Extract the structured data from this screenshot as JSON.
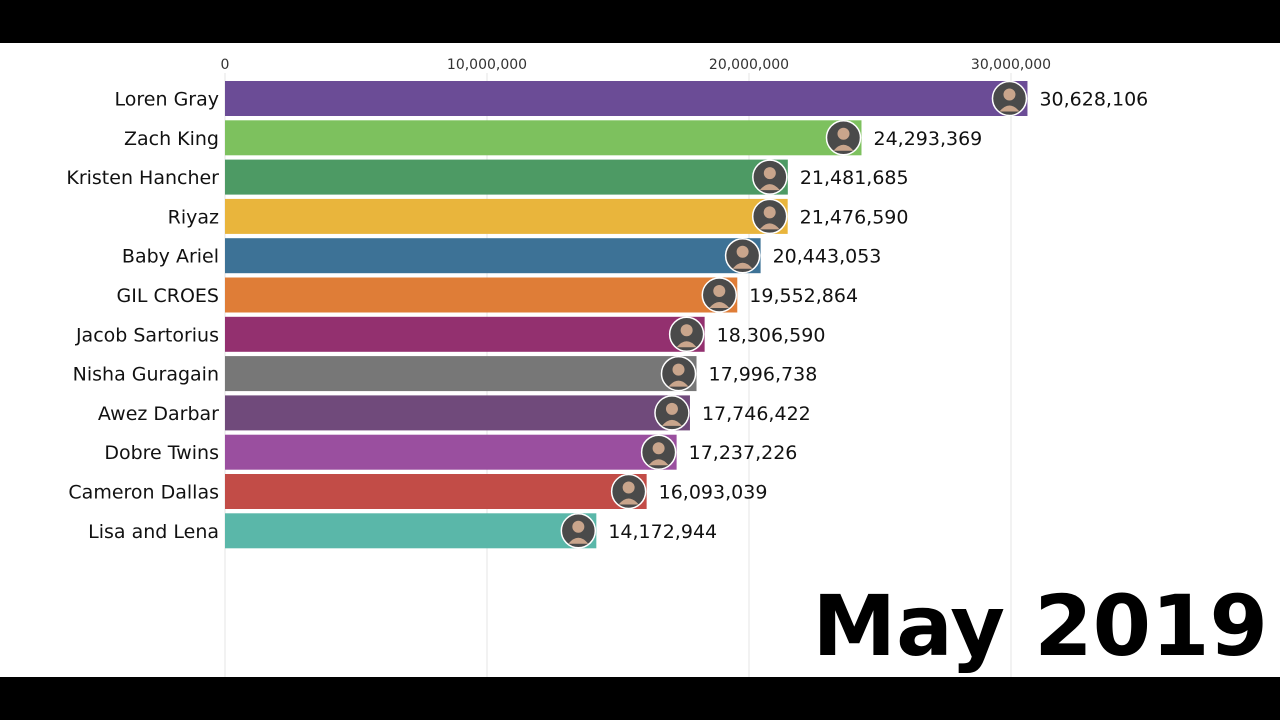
{
  "chart_data": {
    "type": "bar",
    "orientation": "horizontal",
    "period": "May 2019",
    "xlim": [
      0,
      40000000
    ],
    "x_ticks": [
      {
        "value": 0,
        "label": "0"
      },
      {
        "value": 10000000,
        "label": "10,000,000"
      },
      {
        "value": 20000000,
        "label": "20,000,000"
      },
      {
        "value": 30000000,
        "label": "30,000,000"
      }
    ],
    "grid": "vertical",
    "bars": [
      {
        "name": "Loren Gray",
        "value": 30628106,
        "label": "30,628,106",
        "color": "#6b4c96"
      },
      {
        "name": "Zach King",
        "value": 24293369,
        "label": "24,293,369",
        "color": "#7dc15e"
      },
      {
        "name": "Kristen Hancher",
        "value": 21481685,
        "label": "21,481,685",
        "color": "#4d9a64"
      },
      {
        "name": "Riyaz",
        "value": 21476590,
        "label": "21,476,590",
        "color": "#e9b53c"
      },
      {
        "name": "Baby Ariel",
        "value": 20443053,
        "label": "20,443,053",
        "color": "#3d7296"
      },
      {
        "name": "GIL CROES",
        "value": 19552864,
        "label": "19,552,864",
        "color": "#df7d37"
      },
      {
        "name": "Jacob Sartorius",
        "value": 18306590,
        "label": "18,306,590",
        "color": "#93306f"
      },
      {
        "name": "Nisha Guragain",
        "value": 17996738,
        "label": "17,996,738",
        "color": "#777777"
      },
      {
        "name": "Awez Darbar",
        "value": 17746422,
        "label": "17,746,422",
        "color": "#704a7b"
      },
      {
        "name": "Dobre Twins",
        "value": 17237226,
        "label": "17,237,226",
        "color": "#9a4f9f"
      },
      {
        "name": "Cameron Dallas",
        "value": 16093039,
        "label": "16,093,039",
        "color": "#c24c47"
      },
      {
        "name": "Lisa and Lena",
        "value": 14172944,
        "label": "14,172,944",
        "color": "#5ab7a9"
      }
    ]
  }
}
